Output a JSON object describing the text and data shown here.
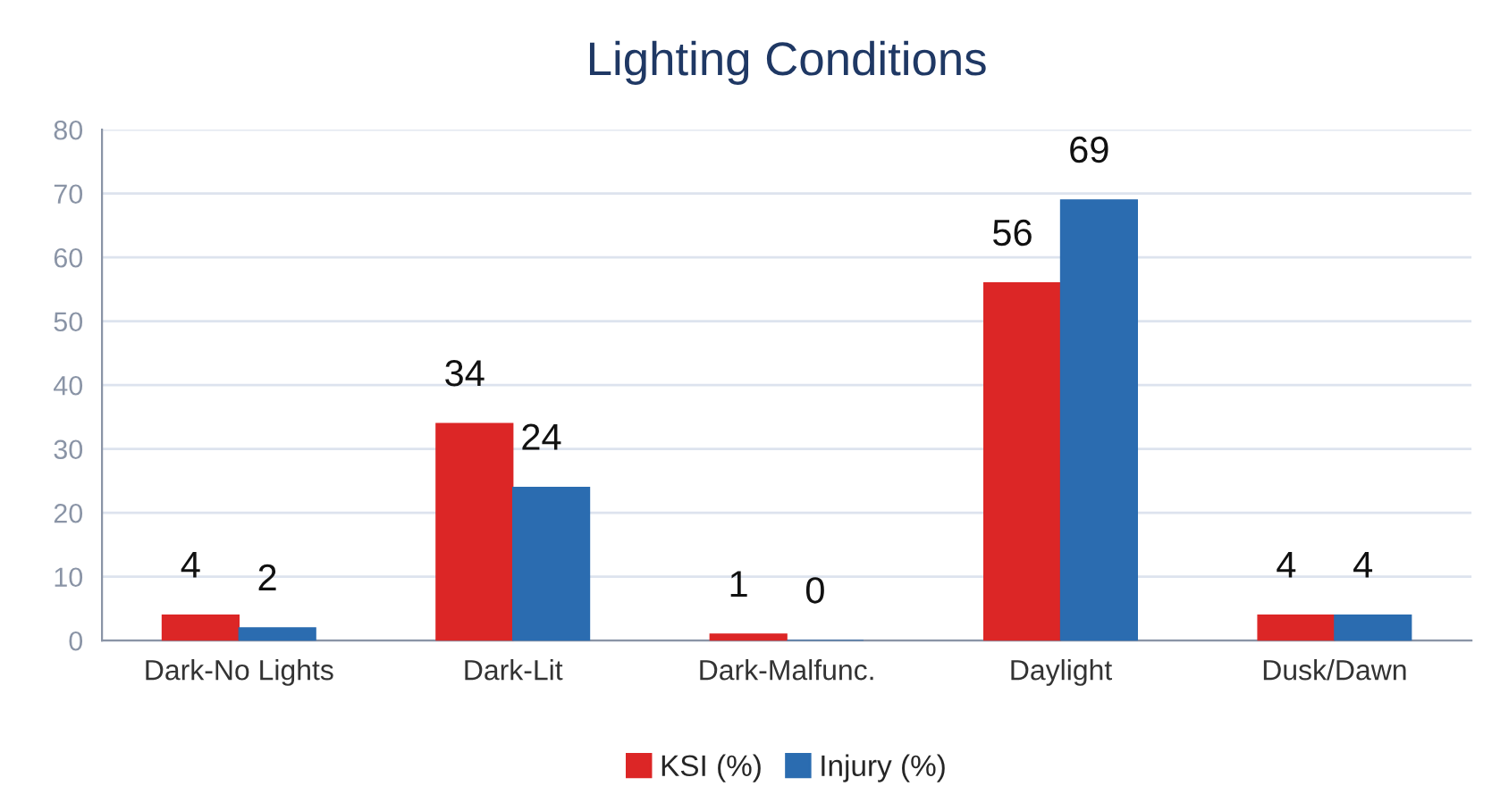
{
  "chart_data": {
    "type": "bar",
    "title": "Lighting Conditions",
    "categories": [
      "Dark-No Lights",
      "Dark-Lit",
      "Dark-Malfunc.",
      "Daylight",
      "Dusk/Dawn"
    ],
    "series": [
      {
        "name": "KSI (%)",
        "color": "#dc2626",
        "values": [
          4,
          34,
          1,
          56,
          4
        ]
      },
      {
        "name": "Injury (%)",
        "color": "#2b6cb0",
        "values": [
          2,
          24,
          0,
          69,
          4
        ]
      }
    ],
    "ylim": [
      0,
      80
    ],
    "yticks": [
      0,
      10,
      20,
      30,
      40,
      50,
      60,
      70,
      80
    ],
    "grid": "y",
    "legend": "bottom",
    "data_labels": true
  }
}
